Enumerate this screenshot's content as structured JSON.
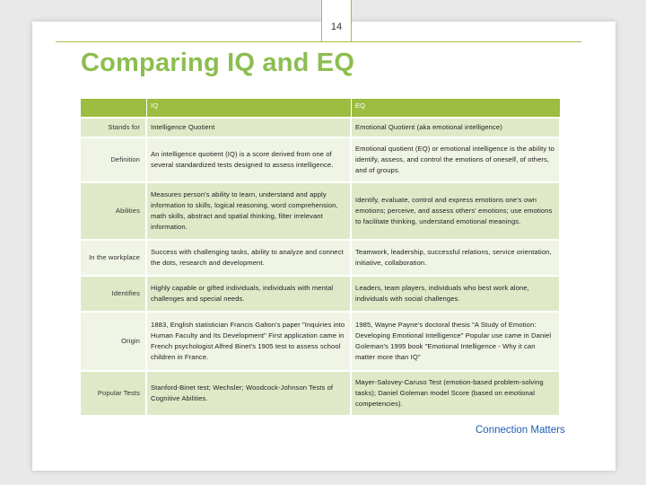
{
  "page_number": "14",
  "title": "Comparing IQ and EQ",
  "table": {
    "headers": {
      "label": "",
      "iq": "IQ",
      "eq": "EQ"
    },
    "rows": [
      {
        "label": "Stands for",
        "iq": "Intelligence Quotient",
        "eq": "Emotional Quotient (aka emotional intelligence)"
      },
      {
        "label": "Definition",
        "iq": "An intelligence quotient (IQ) is a score derived from one of several standardized tests designed to assess intelligence.",
        "eq": "Emotional quotient (EQ) or emotional intelligence is the ability to identify, assess, and control the emotions of oneself, of others, and of groups."
      },
      {
        "label": "Abilities",
        "iq": "Measures person's ability to learn, understand and apply information to skills, logical reasoning, word comprehension, math skills, abstract and spatial thinking, filter irrelevant information.",
        "eq": "Identify, evaluate, control and express emotions one's own emotions; perceive, and assess others' emotions; use emotions to facilitate thinking, understand emotional meanings."
      },
      {
        "label": "In the workplace",
        "iq": "Success with challenging tasks, ability to analyze and connect the dots, research and development.",
        "eq": "Teamwork, leadership, successful relations, service orientation, initiative, collaboration."
      },
      {
        "label": "Identifies",
        "iq": "Highly capable or gifted individuals, individuals with mental challenges and special needs.",
        "eq": "Leaders, team players, individuals who best work alone, individuals with social challenges."
      },
      {
        "label": "Origin",
        "iq": "1883, English statistician Francis Galton's paper \"Inquiries into Human Faculty and Its Development\" First application came in French psychologist Alfred Binet's 1905 test to assess school children in France.",
        "eq": "1985, Wayne Payne's doctoral thesis \"A Study of Emotion: Developing Emotional Intelligence\" Popular use came in Daniel Goleman's 1995 book \"Emotional Intelligence - Why it can matter more than IQ\""
      },
      {
        "label": "Popular Tests",
        "iq": "Stanford-Binet test; Wechsler; Woodcock-Johnson Tests of Cognitive Abilities.",
        "eq": "Mayer-Salovey-Caruso Test (emotion-based problem-solving tasks); Daniel Goleman model Score (based on emotional competencies)."
      }
    ]
  },
  "footer": "Connection Matters"
}
